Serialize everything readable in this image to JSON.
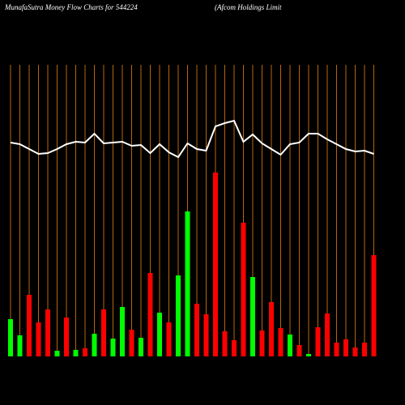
{
  "chart_data": {
    "type": "bar",
    "title": "MunafaSutra  Money Flow  Charts for 544224",
    "subtitle": "(Afcom Holdings Limit",
    "values": [
      46,
      26,
      76,
      42,
      58,
      7,
      48,
      8,
      10,
      28,
      58,
      22,
      61,
      33,
      23,
      103,
      54,
      42,
      100,
      179,
      65,
      52,
      227,
      31,
      20,
      165,
      98,
      32,
      67,
      35,
      27,
      14,
      3,
      36,
      53,
      17,
      21,
      11,
      17,
      125
    ],
    "colors": [
      "#00ff00",
      "#00ff00",
      "#ff0000",
      "#ff0000",
      "#ff0000",
      "#00ff00",
      "#ff0000",
      "#00ff00",
      "#ff0000",
      "#00ff00",
      "#ff0000",
      "#00ff00",
      "#00ff00",
      "#ff0000",
      "#00ff00",
      "#ff0000",
      "#00ff00",
      "#ff0000",
      "#00ff00",
      "#00ff00",
      "#ff0000",
      "#ff0000",
      "#ff0000",
      "#ff0000",
      "#ff0000",
      "#ff0000",
      "#00ff00",
      "#ff0000",
      "#ff0000",
      "#ff0000",
      "#00ff00",
      "#ff0000",
      "#00ff00",
      "#ff0000",
      "#ff0000",
      "#ff0000",
      "#ff0000",
      "#ff0000",
      "#ff0000",
      "#ff0000"
    ],
    "line": {
      "color": "#ffffff",
      "values": [
        264,
        262,
        256,
        250,
        251,
        256,
        262,
        265,
        264,
        275,
        263,
        264,
        265,
        260,
        261,
        251,
        262,
        252,
        246,
        263,
        256,
        254,
        284,
        288,
        291,
        265,
        274,
        263,
        256,
        249,
        262,
        264,
        275,
        275,
        268,
        262,
        256,
        253,
        254,
        250
      ]
    },
    "ylim": [
      0,
      440
    ],
    "grid_color": "#b8660b"
  }
}
